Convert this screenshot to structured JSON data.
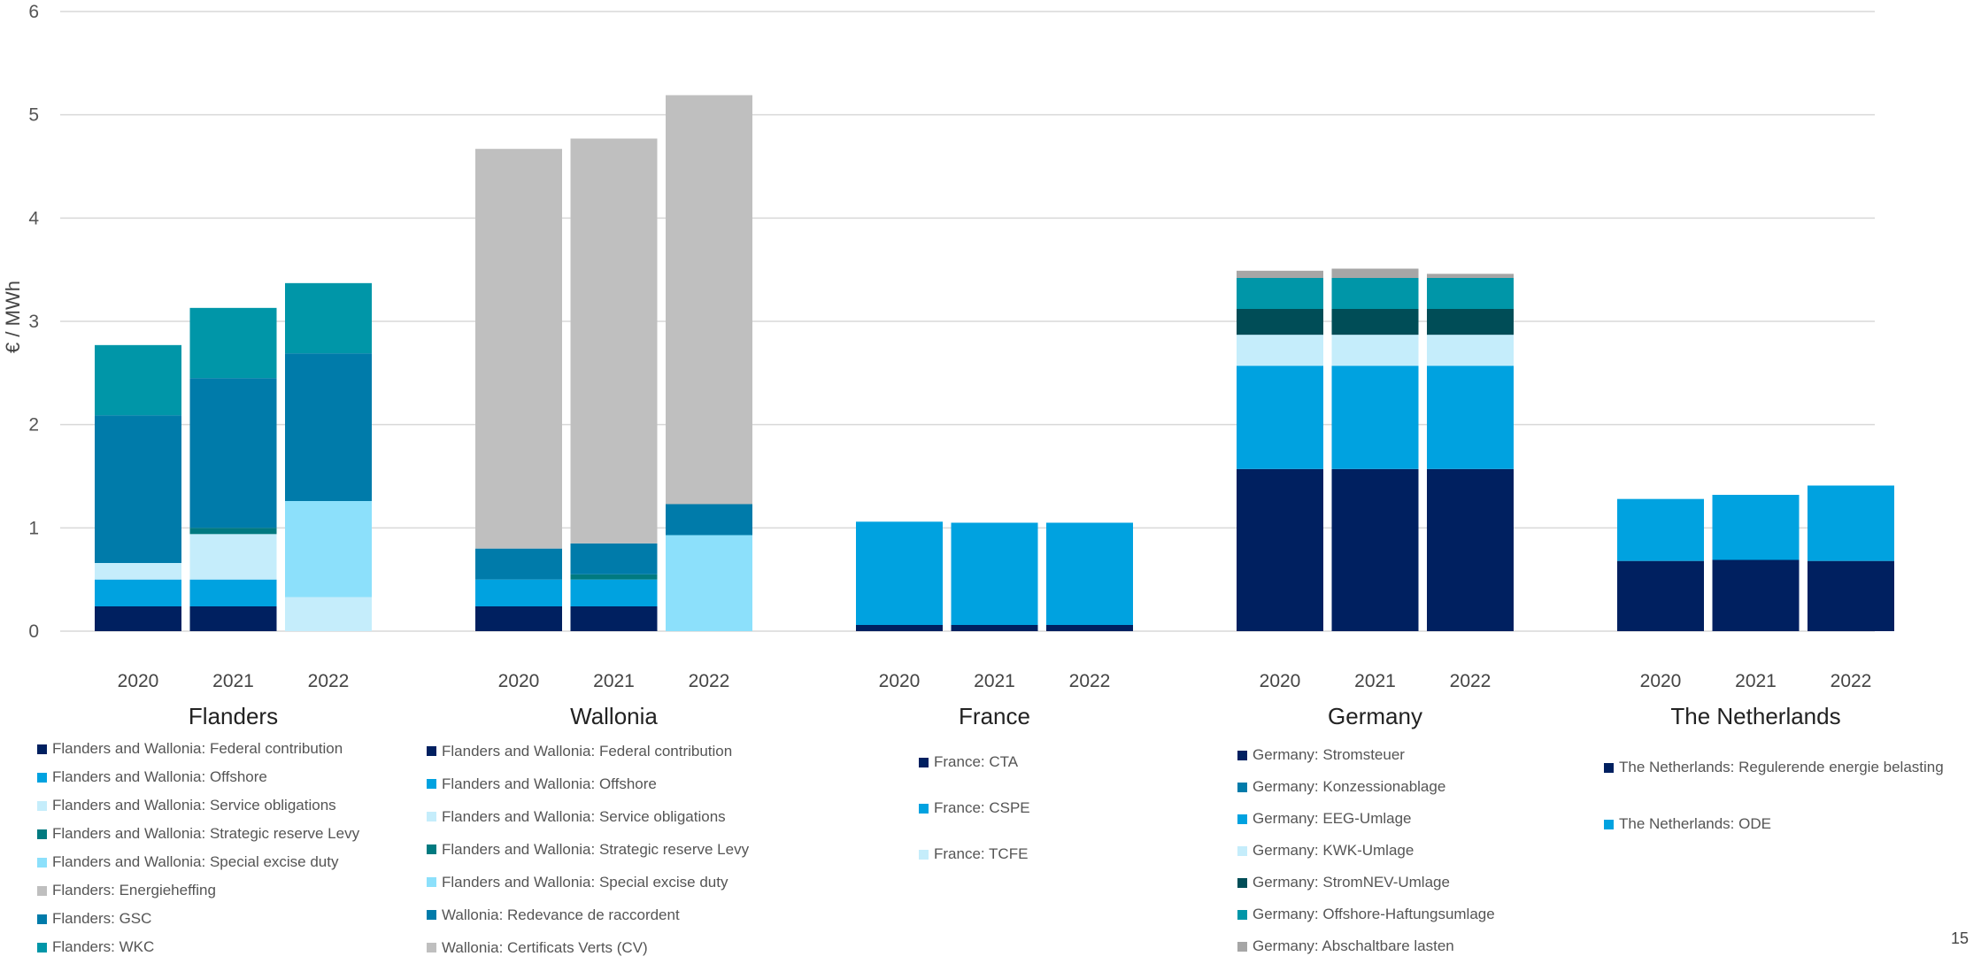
{
  "chart_data": {
    "type": "bar",
    "stacked": true,
    "ylabel": "€ / MWh",
    "ylim": [
      0,
      6
    ],
    "yticks": [
      0,
      1,
      2,
      3,
      4,
      5,
      6
    ],
    "grid": true,
    "colors": {
      "federal": "#002060",
      "offshore": "#00A2E0",
      "service": "#C5EDFB",
      "strategic": "#007A80",
      "excise": "#8CE0FB",
      "energieheffing": "#BFBFBF",
      "gsc": "#007BAA",
      "wkc": "#0096A8",
      "redevance": "#007BAA",
      "cv": "#BFBFBF",
      "cta": "#002060",
      "cspe": "#00A2E0",
      "tcfe": "#C5EDFB",
      "stromsteuer": "#002060",
      "konzession": "#007BAA",
      "eeg": "#00A2E0",
      "kwk": "#C5EDFB",
      "stromnev": "#004D57",
      "offshore_haft": "#0096A8",
      "abschaltbare": "#A6A6A6",
      "regulerende": "#002060",
      "ode": "#00A2E0"
    },
    "groups": [
      {
        "name": "Flanders",
        "years": [
          "2020",
          "2021",
          "2022"
        ],
        "series": [
          {
            "name": "Flanders and Wallonia: Federal contribution",
            "color_key": "federal",
            "values": [
              0.24,
              0.24,
              0
            ]
          },
          {
            "name": "Flanders and Wallonia: Offshore",
            "color_key": "offshore",
            "values": [
              0.26,
              0.26,
              0
            ]
          },
          {
            "name": "Flanders and Wallonia: Service obligations",
            "color_key": "service",
            "values": [
              0.16,
              0.44,
              0.33
            ]
          },
          {
            "name": "Flanders and Wallonia: Strategic reserve Levy",
            "color_key": "strategic",
            "values": [
              0,
              0.06,
              0
            ]
          },
          {
            "name": "Flanders and Wallonia: Special excise duty",
            "color_key": "excise",
            "values": [
              0,
              0,
              0.93
            ]
          },
          {
            "name": "Flanders: Energieheffing",
            "color_key": "energieheffing",
            "values": [
              0,
              0,
              0
            ]
          },
          {
            "name": "Flanders: GSC",
            "color_key": "gsc",
            "values": [
              1.43,
              1.45,
              1.43
            ]
          },
          {
            "name": "Flanders: WKC",
            "color_key": "wkc",
            "values": [
              0.68,
              0.68,
              0.68
            ]
          }
        ]
      },
      {
        "name": "Wallonia",
        "years": [
          "2020",
          "2021",
          "2022"
        ],
        "series": [
          {
            "name": "Flanders and Wallonia: Federal contribution",
            "color_key": "federal",
            "values": [
              0.24,
              0.24,
              0
            ]
          },
          {
            "name": "Flanders and Wallonia: Offshore",
            "color_key": "offshore",
            "values": [
              0.26,
              0.26,
              0
            ]
          },
          {
            "name": "Flanders and Wallonia: Service obligations",
            "color_key": "service",
            "values": [
              0,
              0,
              0
            ]
          },
          {
            "name": "Flanders and Wallonia: Strategic reserve Levy",
            "color_key": "strategic",
            "values": [
              0,
              0.05,
              0
            ]
          },
          {
            "name": "Flanders and Wallonia: Special excise duty",
            "color_key": "excise",
            "values": [
              0,
              0,
              0.93
            ]
          },
          {
            "name": "Wallonia: Redevance de raccordent",
            "color_key": "redevance",
            "values": [
              0.3,
              0.3,
              0.3
            ]
          },
          {
            "name": "Wallonia: Certificats Verts (CV)",
            "color_key": "cv",
            "values": [
              3.87,
              3.92,
              3.96
            ]
          }
        ]
      },
      {
        "name": "France",
        "years": [
          "2020",
          "2021",
          "2022"
        ],
        "series": [
          {
            "name": "France: CTA",
            "color_key": "cta",
            "values": [
              0.06,
              0.06,
              0.06
            ]
          },
          {
            "name": "France: CSPE",
            "color_key": "cspe",
            "values": [
              1.0,
              0.99,
              0.99
            ]
          },
          {
            "name": "France: TCFE",
            "color_key": "tcfe",
            "values": [
              0,
              0,
              0
            ]
          }
        ]
      },
      {
        "name": "Germany",
        "years": [
          "2020",
          "2021",
          "2022"
        ],
        "series": [
          {
            "name": "Germany: Stromsteuer",
            "color_key": "stromsteuer",
            "values": [
              1.57,
              1.57,
              1.57
            ]
          },
          {
            "name": "Germany: Konzessionablage",
            "color_key": "konzession",
            "values": [
              0,
              0,
              0
            ]
          },
          {
            "name": "Germany: EEG-Umlage",
            "color_key": "eeg",
            "values": [
              1.0,
              1.0,
              1.0
            ]
          },
          {
            "name": "Germany: KWK-Umlage",
            "color_key": "kwk",
            "values": [
              0.3,
              0.3,
              0.3
            ]
          },
          {
            "name": "Germany: StromNEV-Umlage",
            "color_key": "stromnev",
            "values": [
              0.25,
              0.25,
              0.25
            ]
          },
          {
            "name": "Germany: Offshore-Haftungsumlage",
            "color_key": "offshore_haft",
            "values": [
              0.3,
              0.3,
              0.3
            ]
          },
          {
            "name": "Germany: Abschaltbare lasten",
            "color_key": "abschaltbare",
            "values": [
              0.07,
              0.09,
              0.04
            ]
          }
        ]
      },
      {
        "name": "The Netherlands",
        "years": [
          "2020",
          "2021",
          "2022"
        ],
        "series": [
          {
            "name": "The Netherlands: Regulerende energie belasting",
            "color_key": "regulerende",
            "values": [
              0.68,
              0.69,
              0.68
            ]
          },
          {
            "name": "The Netherlands: ODE",
            "color_key": "ode",
            "values": [
              0.6,
              0.63,
              0.73
            ]
          }
        ]
      }
    ],
    "legends": [
      {
        "items": [
          {
            "label": "Flanders and Wallonia: Federal contribution",
            "color_key": "federal"
          },
          {
            "label": "Flanders and Wallonia: Offshore",
            "color_key": "offshore"
          },
          {
            "label": "Flanders and Wallonia: Service obligations",
            "color_key": "service"
          },
          {
            "label": "Flanders and Wallonia: Strategic reserve Levy",
            "color_key": "strategic"
          },
          {
            "label": "Flanders and Wallonia: Special excise duty",
            "color_key": "excise"
          },
          {
            "label": "Flanders: Energieheffing",
            "color_key": "energieheffing"
          },
          {
            "label": "Flanders: GSC",
            "color_key": "gsc"
          },
          {
            "label": "Flanders: WKC",
            "color_key": "wkc"
          }
        ]
      },
      {
        "items": [
          {
            "label": "Flanders and Wallonia: Federal contribution",
            "color_key": "federal"
          },
          {
            "label": "Flanders and Wallonia: Offshore",
            "color_key": "offshore"
          },
          {
            "label": "Flanders and Wallonia: Service obligations",
            "color_key": "service"
          },
          {
            "label": "Flanders and Wallonia: Strategic reserve Levy",
            "color_key": "strategic"
          },
          {
            "label": "Flanders and Wallonia: Special excise duty",
            "color_key": "excise"
          },
          {
            "label": "Wallonia: Redevance de raccordent",
            "color_key": "redevance"
          },
          {
            "label": "Wallonia: Certificats Verts (CV)",
            "color_key": "cv"
          }
        ]
      },
      {
        "items": [
          {
            "label": "France: CTA",
            "color_key": "cta"
          },
          {
            "label": "France: CSPE",
            "color_key": "cspe"
          },
          {
            "label": "France: TCFE",
            "color_key": "tcfe"
          }
        ]
      },
      {
        "items": [
          {
            "label": "Germany: Stromsteuer",
            "color_key": "stromsteuer"
          },
          {
            "label": "Germany: Konzessionablage",
            "color_key": "konzession"
          },
          {
            "label": "Germany: EEG-Umlage",
            "color_key": "eeg"
          },
          {
            "label": "Germany: KWK-Umlage",
            "color_key": "kwk"
          },
          {
            "label": "Germany: StromNEV-Umlage",
            "color_key": "stromnev"
          },
          {
            "label": "Germany: Offshore-Haftungsumlage",
            "color_key": "offshore_haft"
          },
          {
            "label": "Germany: Abschaltbare lasten",
            "color_key": "abschaltbare"
          }
        ]
      },
      {
        "items": [
          {
            "label": "The Netherlands: Regulerende energie belasting",
            "color_key": "regulerende"
          },
          {
            "label": "The Netherlands: ODE",
            "color_key": "ode"
          }
        ]
      }
    ]
  },
  "page_number": "15"
}
